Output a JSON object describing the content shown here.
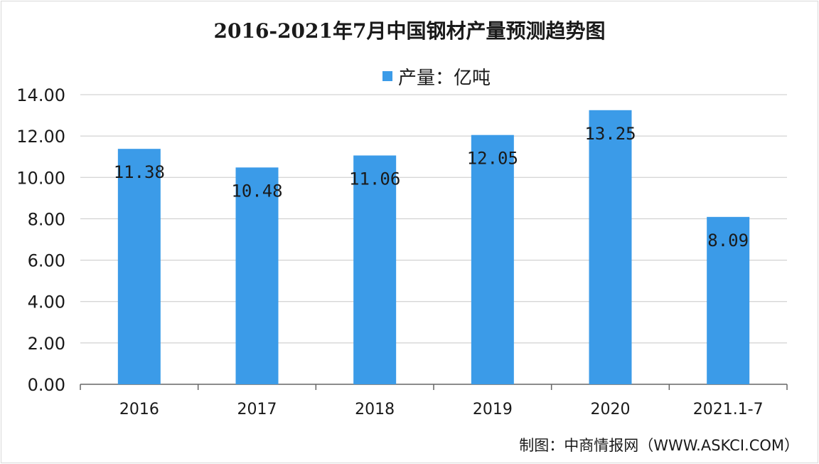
{
  "chart_data": {
    "type": "bar",
    "title": "2016-2021年7月中国钢材产量预测趋势图",
    "categories": [
      "2016",
      "2017",
      "2018",
      "2019",
      "2020",
      "2021.1-7"
    ],
    "series": [
      {
        "name": "产量：亿吨",
        "values": [
          11.38,
          10.48,
          11.06,
          12.05,
          13.25,
          8.09
        ]
      }
    ],
    "data_labels": [
      "11.38",
      "10.48",
      "11.06",
      "12.05",
      "13.25",
      "8.09"
    ],
    "y_ticks": [
      "0.00",
      "2.00",
      "4.00",
      "6.00",
      "8.00",
      "10.00",
      "12.00",
      "14.00"
    ],
    "ylim": [
      0,
      14
    ],
    "grid": true,
    "legend_position": "top-center",
    "bar_color": "#3b9be8"
  },
  "source": "制图：中商情报网（WWW.ASKCI.COM）"
}
